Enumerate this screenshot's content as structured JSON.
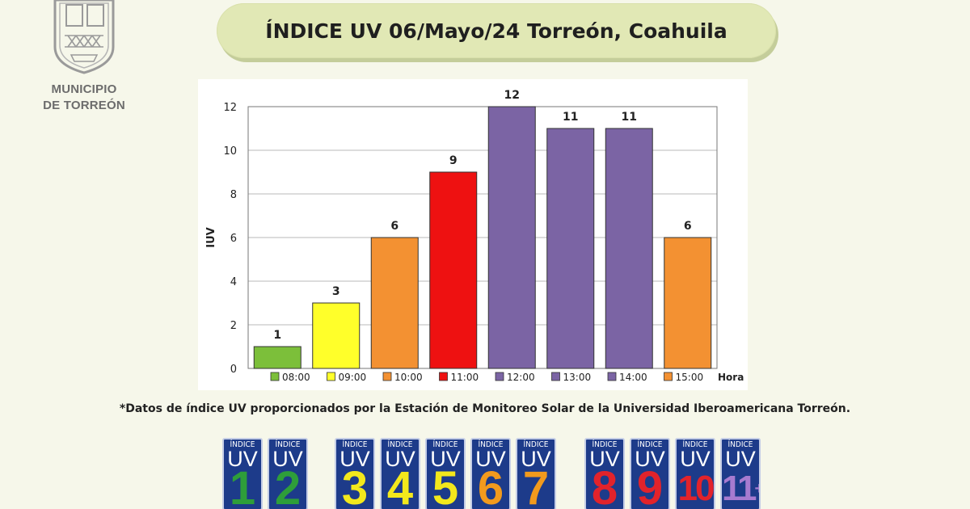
{
  "header": {
    "title": "ÍNDICE UV 06/Mayo/24 Torreón, Coahuila",
    "logo": {
      "line1": "MUNICIPIO",
      "line2": "DE TORREÓN",
      "icon": "city-crest-icon"
    }
  },
  "chart_data": {
    "type": "bar",
    "categories": [
      "08:00",
      "09:00",
      "10:00",
      "11:00",
      "12:00",
      "13:00",
      "14:00",
      "15:00"
    ],
    "values": [
      1,
      3,
      6,
      9,
      12,
      11,
      11,
      6
    ],
    "colors": [
      "#7cbf3a",
      "#ffff2a",
      "#f39132",
      "#ee1111",
      "#7b64a4",
      "#7b64a4",
      "#7b64a4",
      "#f39132"
    ],
    "ylabel": "IUV",
    "xlabel": "Hora",
    "ylim": [
      0,
      12
    ],
    "yticks": [
      0,
      2,
      4,
      6,
      8,
      10,
      12
    ],
    "grid": true,
    "legend_position": "bottom"
  },
  "footnote": "*Datos de índice UV proporcionados por la Estación de Monitoreo Solar de la Universidad Iberoamericana Torreón.",
  "uv_scale": {
    "label_small": "ÍNDICE",
    "label_uv": "UV",
    "cards": [
      {
        "value": "1",
        "color": "#2e9e3a"
      },
      {
        "value": "2",
        "color": "#2e9e3a"
      },
      {
        "value": "3",
        "color": "#f3e81c"
      },
      {
        "value": "4",
        "color": "#f3e81c"
      },
      {
        "value": "5",
        "color": "#f3e81c"
      },
      {
        "value": "6",
        "color": "#f29a1d"
      },
      {
        "value": "7",
        "color": "#f29a1d"
      },
      {
        "value": "8",
        "color": "#e2232b"
      },
      {
        "value": "9",
        "color": "#e2232b"
      },
      {
        "value": "10",
        "color": "#e2232b"
      },
      {
        "value": "11",
        "color": "#a77bd0",
        "suffix": "+"
      }
    ]
  }
}
